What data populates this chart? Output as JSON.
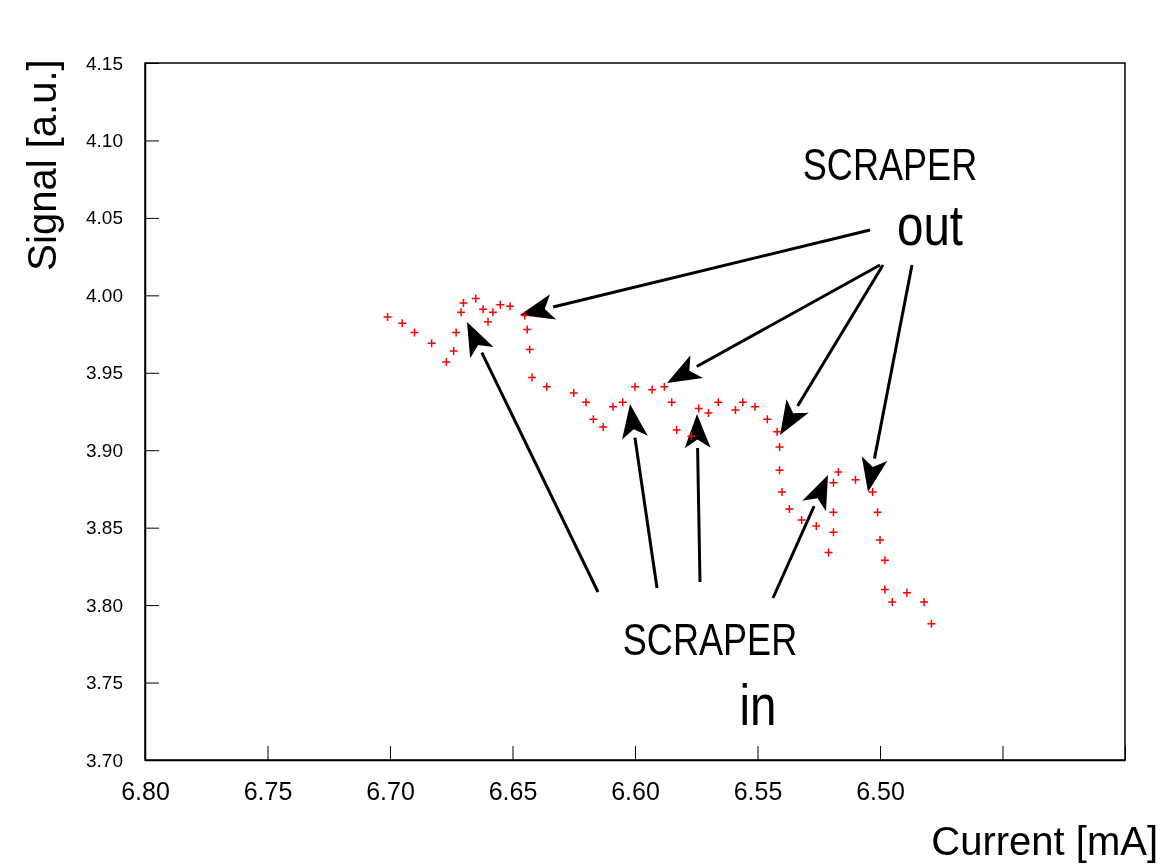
{
  "chart_data": {
    "type": "scatter",
    "xlabel": "Current [mA]",
    "ylabel": "Signal [a.u.]",
    "xlim": [
      6.8,
      6.4
    ],
    "xticks": [
      {
        "value": 6.8,
        "label": "6.80"
      },
      {
        "value": 6.75,
        "label": "6.75"
      },
      {
        "value": 6.7,
        "label": "6.70"
      },
      {
        "value": 6.65,
        "label": "6.65"
      },
      {
        "value": 6.6,
        "label": "6.60"
      },
      {
        "value": 6.55,
        "label": "6.55"
      },
      {
        "value": 6.5,
        "label": "6.50"
      },
      {
        "value": 6.45,
        "label": null
      },
      {
        "value": 6.4,
        "label": null
      }
    ],
    "ylim": [
      3.7,
      4.15
    ],
    "yticks": [
      {
        "value": 3.7,
        "label": "3.70"
      },
      {
        "value": 3.75,
        "label": "3.75"
      },
      {
        "value": 3.8,
        "label": "3.80"
      },
      {
        "value": 3.85,
        "label": "3.85"
      },
      {
        "value": 3.9,
        "label": "3.90"
      },
      {
        "value": 3.95,
        "label": "3.95"
      },
      {
        "value": 4.0,
        "label": "4.00"
      },
      {
        "value": 4.05,
        "label": "4.05"
      },
      {
        "value": 4.1,
        "label": "4.10"
      },
      {
        "value": 4.15,
        "label": "4.15"
      }
    ],
    "marker": "cross",
    "grid": false,
    "annotations": [
      "SCRAPER",
      "out",
      "SCRAPER",
      "in"
    ],
    "series": [
      {
        "color": "#ff0000",
        "x": [
          6.701,
          6.695,
          6.69,
          6.683,
          6.677,
          6.674,
          6.673,
          6.671,
          6.67,
          6.665,
          6.662,
          6.66,
          6.658,
          6.655,
          6.651,
          6.645,
          6.644,
          6.643,
          6.642,
          6.636,
          6.625,
          6.62,
          6.617,
          6.613,
          6.609,
          6.605,
          6.6,
          6.593,
          6.588,
          6.585,
          6.583,
          6.577,
          6.574,
          6.57,
          6.566,
          6.559,
          6.556,
          6.551,
          6.546,
          6.542,
          6.541,
          6.541,
          6.54,
          6.537,
          6.532,
          6.526,
          6.521,
          6.519,
          6.519,
          6.519,
          6.517,
          6.51,
          6.503,
          6.501,
          6.5,
          6.498,
          6.498,
          6.495,
          6.489,
          6.482,
          6.479
        ],
        "values": [
          3.986,
          3.982,
          3.976,
          3.969,
          3.957,
          3.964,
          3.976,
          3.989,
          3.995,
          3.998,
          3.991,
          3.983,
          3.989,
          3.994,
          3.993,
          3.987,
          3.978,
          3.965,
          3.947,
          3.941,
          3.937,
          3.931,
          3.92,
          3.915,
          3.928,
          3.931,
          3.941,
          3.939,
          3.941,
          3.931,
          3.913,
          3.909,
          3.927,
          3.924,
          3.931,
          3.926,
          3.931,
          3.928,
          3.92,
          3.912,
          3.902,
          3.887,
          3.873,
          3.862,
          3.855,
          3.851,
          3.834,
          3.847,
          3.86,
          3.879,
          3.886,
          3.881,
          3.873,
          3.86,
          3.842,
          3.829,
          3.81,
          3.802,
          3.808,
          3.802,
          3.788
        ]
      }
    ]
  }
}
